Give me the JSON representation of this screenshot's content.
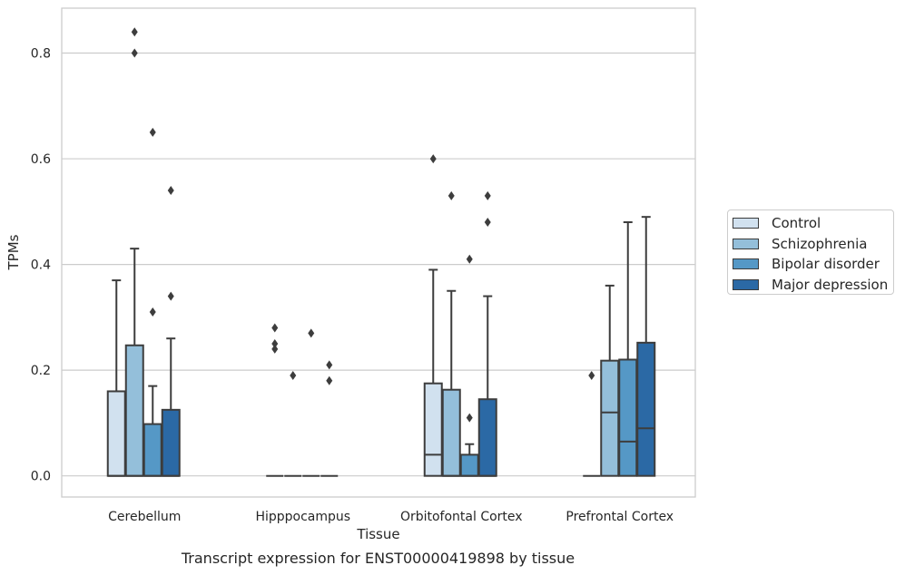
{
  "chart_data": {
    "type": "box",
    "title": "",
    "caption": "Transcript expression for ENST00000419898 by tissue",
    "xlabel": "Tissue",
    "ylabel": "TPMs",
    "ylim": [
      -0.04,
      0.885
    ],
    "yticks": [
      "0.0",
      "0.2",
      "0.4",
      "0.6",
      "0.8"
    ],
    "grid": true,
    "legend_position": "right",
    "categories": [
      "Cerebellum",
      "Hipppocampus",
      "Orbitofontal Cortex",
      "Prefrontal Cortex"
    ],
    "series": [
      {
        "name": "Control",
        "color": "#d1e1ef",
        "boxes": [
          {
            "min": 0,
            "q1": 0,
            "median": 0,
            "q3": 0.16,
            "max": 0.37,
            "outliers": []
          },
          {
            "min": 0,
            "q1": 0,
            "median": 0,
            "q3": 0,
            "max": 0,
            "outliers": [
              0.28,
              0.25,
              0.24
            ]
          },
          {
            "min": 0,
            "q1": 0,
            "median": 0.04,
            "q3": 0.175,
            "max": 0.39,
            "outliers": [
              0.6
            ]
          },
          {
            "min": 0,
            "q1": 0,
            "median": 0,
            "q3": 0,
            "max": 0,
            "outliers": [
              0.19
            ]
          }
        ]
      },
      {
        "name": "Schizophrenia",
        "color": "#94bfda",
        "boxes": [
          {
            "min": 0,
            "q1": 0,
            "median": 0,
            "q3": 0.247,
            "max": 0.43,
            "outliers": [
              0.84,
              0.8
            ]
          },
          {
            "min": 0,
            "q1": 0,
            "median": 0,
            "q3": 0,
            "max": 0,
            "outliers": [
              0.19
            ]
          },
          {
            "min": 0,
            "q1": 0,
            "median": 0,
            "q3": 0.163,
            "max": 0.35,
            "outliers": [
              0.53
            ]
          },
          {
            "min": 0,
            "q1": 0,
            "median": 0.12,
            "q3": 0.218,
            "max": 0.36,
            "outliers": []
          }
        ]
      },
      {
        "name": "Bipolar disorder",
        "color": "#5598c6",
        "boxes": [
          {
            "min": 0,
            "q1": 0,
            "median": 0,
            "q3": 0.098,
            "max": 0.17,
            "outliers": [
              0.65,
              0.31
            ]
          },
          {
            "min": 0,
            "q1": 0,
            "median": 0,
            "q3": 0,
            "max": 0,
            "outliers": [
              0.27
            ]
          },
          {
            "min": 0,
            "q1": 0,
            "median": 0,
            "q3": 0.04,
            "max": 0.06,
            "outliers": [
              0.41,
              0.11
            ]
          },
          {
            "min": 0,
            "q1": 0,
            "median": 0.065,
            "q3": 0.22,
            "max": 0.48,
            "outliers": []
          }
        ]
      },
      {
        "name": "Major depression",
        "color": "#2b69a5",
        "boxes": [
          {
            "min": 0,
            "q1": 0,
            "median": 0,
            "q3": 0.125,
            "max": 0.26,
            "outliers": [
              0.54,
              0.34
            ]
          },
          {
            "min": 0,
            "q1": 0,
            "median": 0,
            "q3": 0,
            "max": 0,
            "outliers": [
              0.21,
              0.18
            ]
          },
          {
            "min": 0,
            "q1": 0,
            "median": 0,
            "q3": 0.145,
            "max": 0.34,
            "outliers": [
              0.53,
              0.48
            ]
          },
          {
            "min": 0,
            "q1": 0,
            "median": 0.09,
            "q3": 0.252,
            "max": 0.49,
            "outliers": []
          }
        ]
      }
    ]
  }
}
